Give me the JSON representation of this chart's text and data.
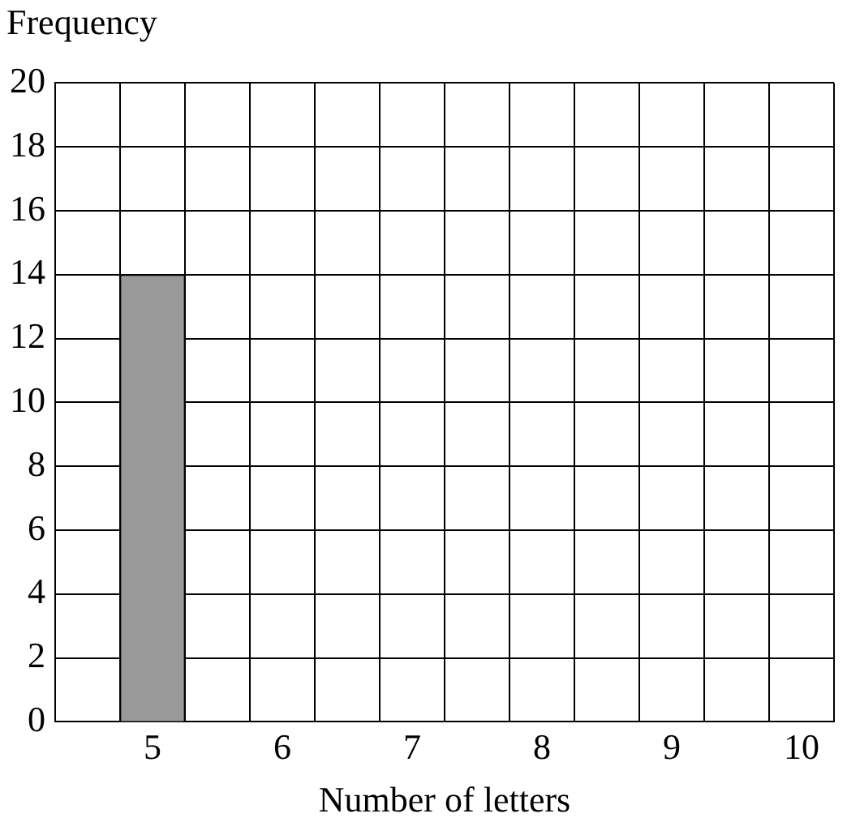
{
  "chart_data": {
    "type": "bar",
    "ylabel": "Frequency",
    "xlabel": "Number of letters",
    "categories": [
      null,
      "5",
      null,
      "6",
      null,
      "7",
      null,
      "8",
      null,
      "9",
      null,
      "10"
    ],
    "values": [
      null,
      14,
      null,
      null,
      null,
      null,
      null,
      null,
      null,
      null,
      null,
      null
    ],
    "color": "#999999",
    "ylim": [
      0,
      20
    ],
    "yticks": [
      0,
      2,
      4,
      6,
      8,
      10,
      12,
      14,
      16,
      18,
      20
    ],
    "grid": true,
    "legend": false
  }
}
